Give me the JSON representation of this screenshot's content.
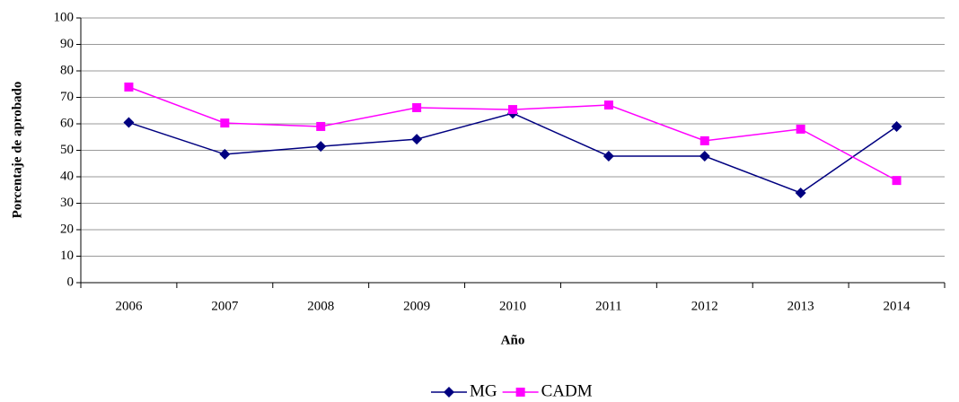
{
  "chart_data": {
    "type": "line",
    "categories": [
      "2006",
      "2007",
      "2008",
      "2009",
      "2010",
      "2011",
      "2012",
      "2013",
      "2014"
    ],
    "series": [
      {
        "name": "MG",
        "color": "#000080",
        "marker": "diamond",
        "values": [
          60.5,
          48.5,
          51.5,
          54.2,
          64,
          47.8,
          47.8,
          33.9,
          59
        ]
      },
      {
        "name": "CADM",
        "color": "#ff00ff",
        "marker": "square",
        "values": [
          73.9,
          60.3,
          59,
          66.1,
          65.4,
          67.1,
          53.6,
          58,
          38.6
        ]
      }
    ],
    "x_label": "Año",
    "y_label": "Porcentaje de aprobado",
    "ylim": [
      0,
      100
    ],
    "yticks": [
      0,
      10,
      20,
      30,
      40,
      50,
      60,
      70,
      80,
      90,
      100
    ],
    "grid": true,
    "legend": "bottom"
  }
}
